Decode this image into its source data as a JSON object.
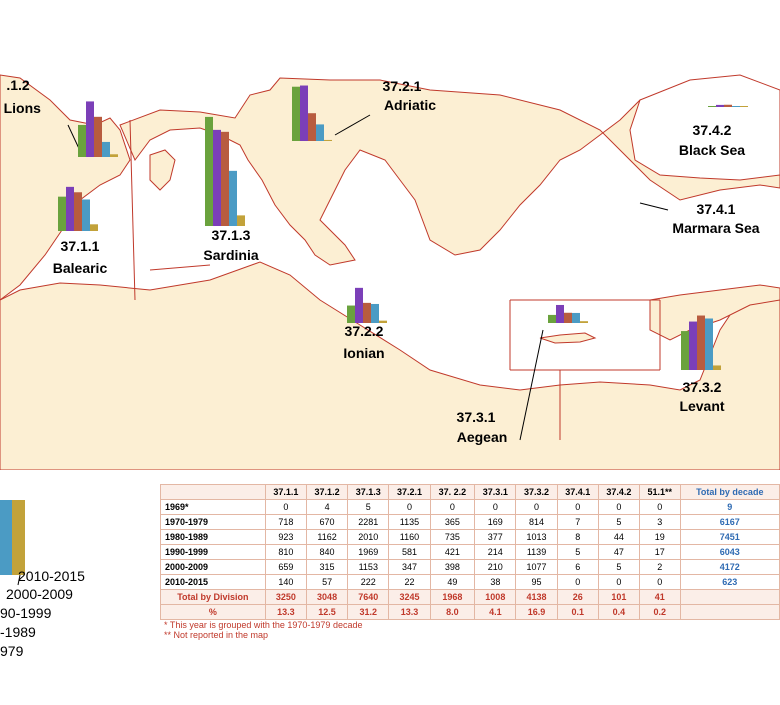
{
  "colors": {
    "land": "#fcefd3",
    "border": "#c0392b",
    "sea": "#ffffff",
    "bar_1970_1979": "#6aa23d",
    "bar_1980_1989": "#7b3fb8",
    "bar_1990_1999": "#b85c3f",
    "bar_2000_2009": "#4b9bc4",
    "bar_2010_2015": "#c2a23a",
    "table_header": "#fbeee8",
    "table_red": "#c0392b",
    "table_blue": "#2f6bb3"
  },
  "areas": [
    {
      "id": "37.1.2",
      "code": ".1.2",
      "name": "f Lions",
      "values": [
        670,
        1162,
        840,
        315,
        57
      ]
    },
    {
      "id": "37.2.1",
      "code": "37.2.1",
      "name": "Adriatic",
      "values": [
        1135,
        1160,
        581,
        347,
        22
      ]
    },
    {
      "id": "37.4.2",
      "code": "37.4.2",
      "name": "Black Sea",
      "values": [
        5,
        44,
        47,
        5,
        0
      ]
    },
    {
      "id": "37.1.1",
      "code": "37.1.1",
      "name": "Balearic",
      "values": [
        718,
        923,
        810,
        659,
        140
      ]
    },
    {
      "id": "37.1.3",
      "code": "37.1.3",
      "name": "Sardinia",
      "values": [
        2281,
        2010,
        1969,
        1153,
        222
      ]
    },
    {
      "id": "37.4.1",
      "code": "37.4.1",
      "name": "Marmara Sea",
      "values": []
    },
    {
      "id": "37.2.2",
      "code": "37.2.2",
      "name": "Ionian",
      "values": [
        365,
        735,
        421,
        398,
        49
      ]
    },
    {
      "id": "37.3.1",
      "code": "37.3.1",
      "name": "Aegean",
      "values": [
        169,
        377,
        214,
        210,
        38
      ]
    },
    {
      "id": "37.3.2",
      "code": "37.3.2",
      "name": "Levant",
      "values": [
        814,
        1013,
        1139,
        1077,
        95
      ]
    }
  ],
  "legend": {
    "entries": [
      "2010-2015",
      "2000-2009",
      "90-1999",
      "-1989",
      "979"
    ]
  },
  "table": {
    "headers": [
      "",
      "37.1.1",
      "37.1.2",
      "37.1.3",
      "37.2.1",
      "37. 2.2",
      "37.3.1",
      "37.3.2",
      "37.4.1",
      "37.4.2",
      "51.1**",
      "Total by decade"
    ],
    "rows": [
      {
        "label": "1969*",
        "cells": [
          "0",
          "4",
          "5",
          "0",
          "0",
          "0",
          "0",
          "0",
          "0",
          "0"
        ],
        "total": "9"
      },
      {
        "label": "1970-1979",
        "cells": [
          "718",
          "670",
          "2281",
          "1135",
          "365",
          "169",
          "814",
          "7",
          "5",
          "3"
        ],
        "total": "6167"
      },
      {
        "label": "1980-1989",
        "cells": [
          "923",
          "1162",
          "2010",
          "1160",
          "735",
          "377",
          "1013",
          "8",
          "44",
          "19"
        ],
        "total": "7451"
      },
      {
        "label": "1990-1999",
        "cells": [
          "810",
          "840",
          "1969",
          "581",
          "421",
          "214",
          "1139",
          "5",
          "47",
          "17"
        ],
        "total": "6043"
      },
      {
        "label": "2000-2009",
        "cells": [
          "659",
          "315",
          "1153",
          "347",
          "398",
          "210",
          "1077",
          "6",
          "5",
          "2"
        ],
        "total": "4172"
      },
      {
        "label": "2010-2015",
        "cells": [
          "140",
          "57",
          "222",
          "22",
          "49",
          "38",
          "95",
          "0",
          "0",
          "0"
        ],
        "total": "623"
      }
    ],
    "total_label": "Total by Division",
    "total_values": [
      "3250",
      "3048",
      "7640",
      "3245",
      "1968",
      "1008",
      "4138",
      "26",
      "101",
      "41"
    ],
    "pct_label": "%",
    "pct_values": [
      "13.3",
      "12.5",
      "31.2",
      "13.3",
      "8.0",
      "4.1",
      "16.9",
      "0.1",
      "0.4",
      "0.2"
    ],
    "note1": "* This year is grouped with the 1970-1979 decade",
    "note2": "** Not reported in the map"
  }
}
